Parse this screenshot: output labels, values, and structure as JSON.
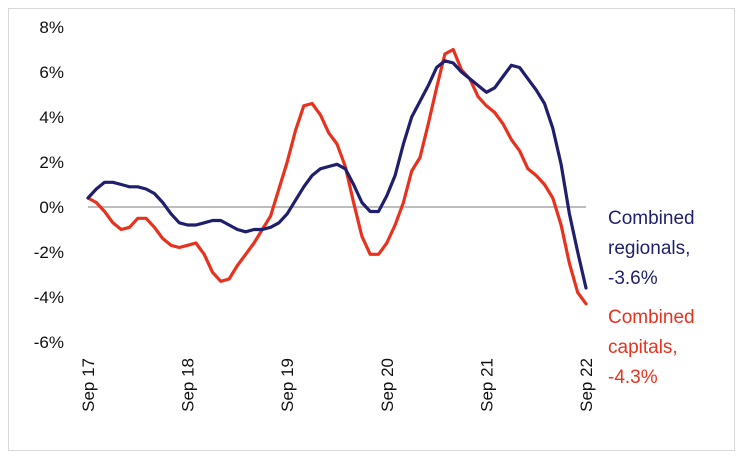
{
  "chart_data": {
    "type": "line",
    "title": "",
    "xlabel": "",
    "ylabel": "",
    "ylim": [
      -6,
      8
    ],
    "yticks": [
      "8%",
      "6%",
      "4%",
      "2%",
      "0%",
      "-2%",
      "-4%",
      "-6%"
    ],
    "yticks_values": [
      8,
      6,
      4,
      2,
      0,
      -2,
      -4,
      -6
    ],
    "xticks": [
      "Sep 17",
      "Sep 18",
      "Sep 19",
      "Sep 20",
      "Sep 21",
      "Sep 22"
    ],
    "x_start": "Sep 17",
    "x_end": "Sep 22",
    "grid": false,
    "zero_line": true,
    "series": [
      {
        "name": "Combined regionals, -3.6%",
        "label_lines": [
          "Combined",
          "regionals,",
          "-3.6%"
        ],
        "color": "#1f1f6e",
        "values": [
          0.4,
          0.8,
          1.1,
          1.1,
          1.0,
          0.9,
          0.9,
          0.8,
          0.6,
          0.2,
          -0.3,
          -0.7,
          -0.8,
          -0.8,
          -0.7,
          -0.6,
          -0.6,
          -0.8,
          -1.0,
          -1.1,
          -1.0,
          -1.0,
          -0.9,
          -0.7,
          -0.3,
          0.3,
          0.9,
          1.4,
          1.7,
          1.8,
          1.9,
          1.7,
          1.0,
          0.2,
          -0.2,
          -0.2,
          0.5,
          1.4,
          2.8,
          4.0,
          4.7,
          5.4,
          6.2,
          6.5,
          6.4,
          6.0,
          5.7,
          5.4,
          5.1,
          5.3,
          5.8,
          6.3,
          6.2,
          5.7,
          5.2,
          4.6,
          3.5,
          1.9,
          -0.3,
          -2.0,
          -3.6
        ]
      },
      {
        "name": "Combined capitals, -4.3%",
        "label_lines": [
          "Combined",
          "capitals,",
          "-4.3%"
        ],
        "color": "#e8321e",
        "values": [
          0.4,
          0.2,
          -0.2,
          -0.7,
          -1.0,
          -0.9,
          -0.5,
          -0.5,
          -0.9,
          -1.4,
          -1.7,
          -1.8,
          -1.7,
          -1.6,
          -2.1,
          -2.9,
          -3.3,
          -3.2,
          -2.6,
          -2.1,
          -1.6,
          -1.0,
          -0.4,
          0.8,
          2.0,
          3.4,
          4.5,
          4.6,
          4.1,
          3.3,
          2.8,
          1.8,
          0.2,
          -1.3,
          -2.1,
          -2.1,
          -1.6,
          -0.8,
          0.2,
          1.6,
          2.2,
          3.7,
          5.3,
          6.8,
          7.0,
          6.1,
          5.7,
          4.9,
          4.5,
          4.2,
          3.7,
          3.0,
          2.5,
          1.7,
          1.4,
          1.0,
          0.4,
          -0.8,
          -2.5,
          -3.8,
          -4.3
        ]
      }
    ]
  }
}
